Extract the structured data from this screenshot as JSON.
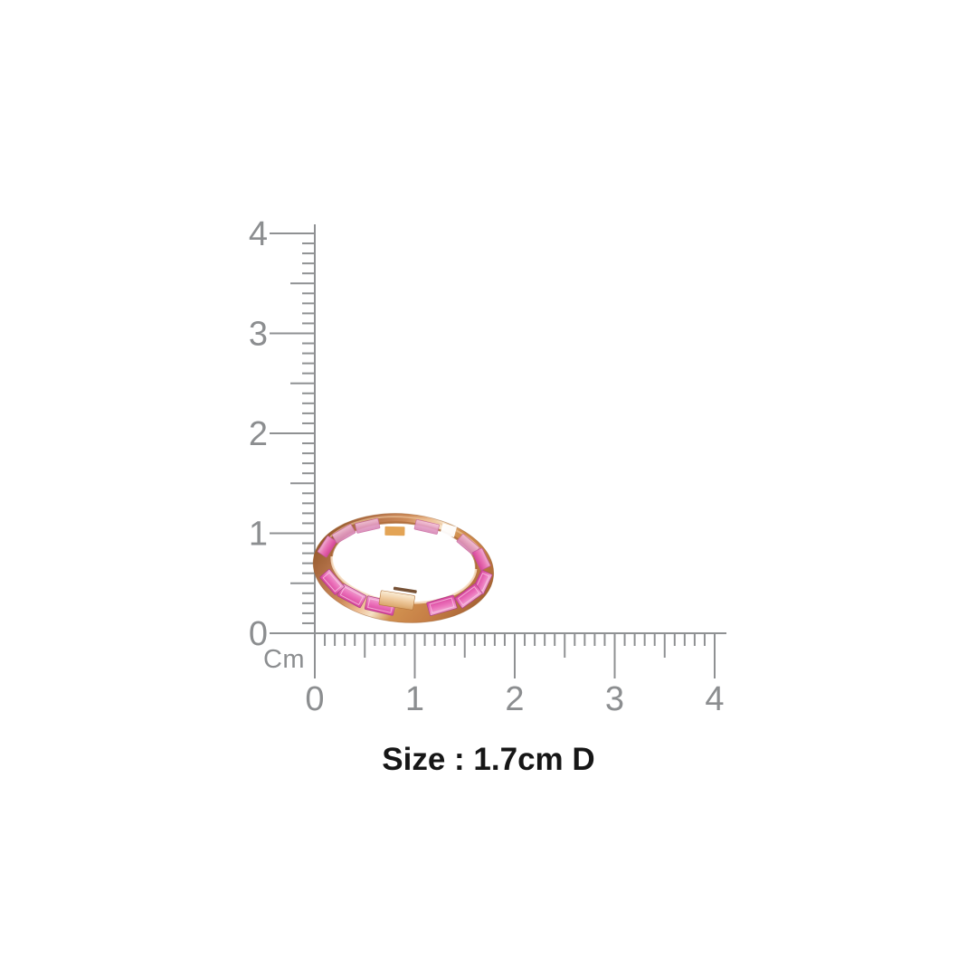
{
  "scene": {
    "background": "#ffffff"
  },
  "ruler": {
    "unit_label": "Cm",
    "tick_color": "#8f9193",
    "label_color": "#8c8e90",
    "range_cm": [
      0,
      4
    ],
    "minor_step_cm": 0.1,
    "vertical_labels": [
      {
        "value": 4,
        "label": "4"
      },
      {
        "value": 3,
        "label": "3"
      },
      {
        "value": 2,
        "label": "2"
      },
      {
        "value": 1,
        "label": "1"
      },
      {
        "value": 0,
        "label": "0"
      }
    ],
    "horizontal_labels": [
      {
        "value": 0,
        "label": "0"
      },
      {
        "value": 1,
        "label": "1"
      },
      {
        "value": 2,
        "label": "2"
      },
      {
        "value": 3,
        "label": "3"
      },
      {
        "value": 4,
        "label": "4"
      }
    ]
  },
  "ring": {
    "description": "rose gold eternity band with pink baguette stones",
    "band_dark": "#8f5527",
    "band_mid": "#cd8b59",
    "band_highlight": "#f6e2c6",
    "stone_pink": "#d8439c",
    "stone_pink_light": "#f0aed5"
  },
  "caption": {
    "text": "Size : 1.7cm D",
    "color": "#161616"
  }
}
